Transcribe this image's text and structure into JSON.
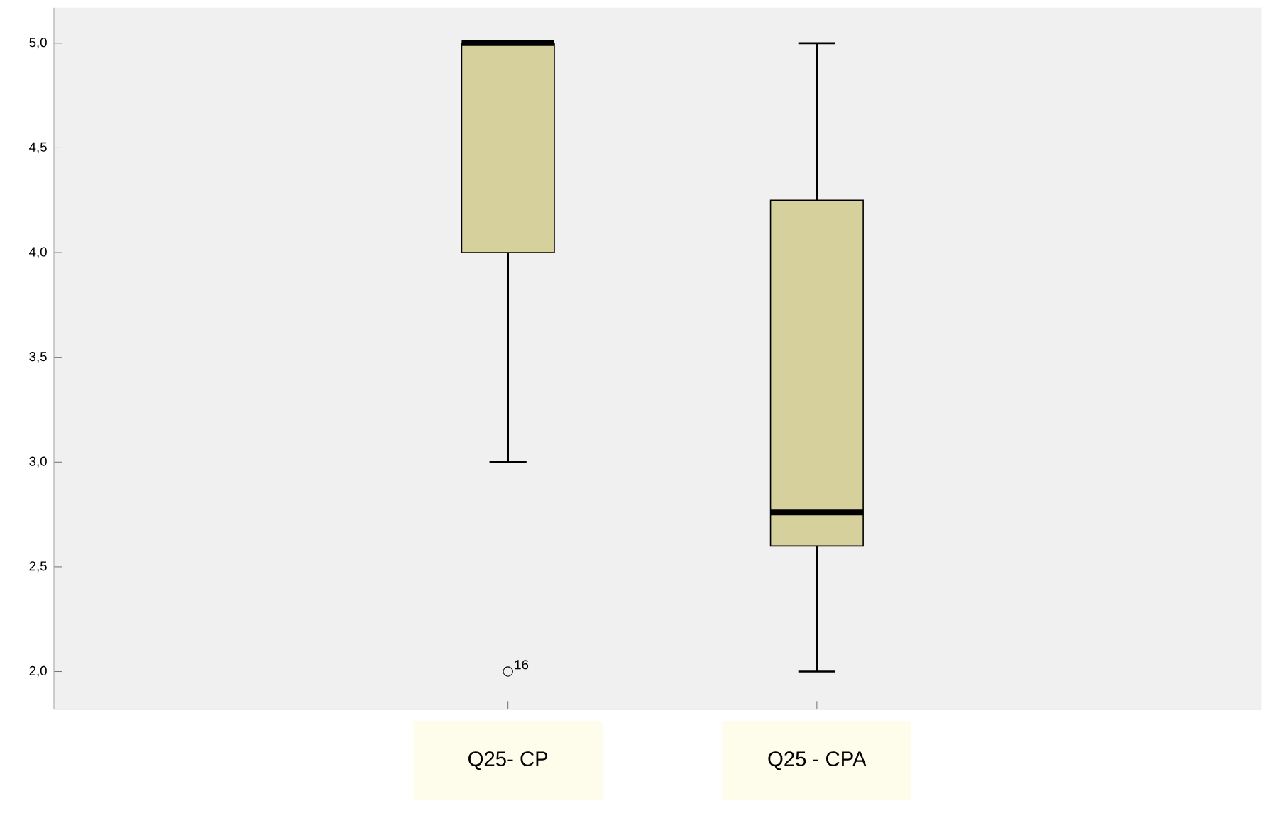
{
  "chart_data": {
    "type": "box",
    "categories": [
      "Q25- CP",
      "Q25 - CPA"
    ],
    "boxes": [
      {
        "low": 3.0,
        "q1": 4.0,
        "median": 5.0,
        "q3": 5.0,
        "high": 5.0,
        "outliers": [
          2.0
        ]
      },
      {
        "low": 2.0,
        "q1": 2.6,
        "median": 2.76,
        "q3": 4.25,
        "high": 5.0
      }
    ],
    "color": "#d6d19c",
    "ylim": [
      1.82,
      5.17
    ],
    "yticks": [
      {
        "value": 2.0,
        "label": "2,0"
      },
      {
        "value": 2.5,
        "label": "2,5"
      },
      {
        "value": 3.0,
        "label": "3,0"
      },
      {
        "value": 3.5,
        "label": "3,5"
      },
      {
        "value": 4.0,
        "label": "4,0"
      },
      {
        "value": 4.5,
        "label": "4,5"
      },
      {
        "value": 5.0,
        "label": "5,0"
      }
    ],
    "annotations": [
      "16"
    ],
    "grid": false
  }
}
